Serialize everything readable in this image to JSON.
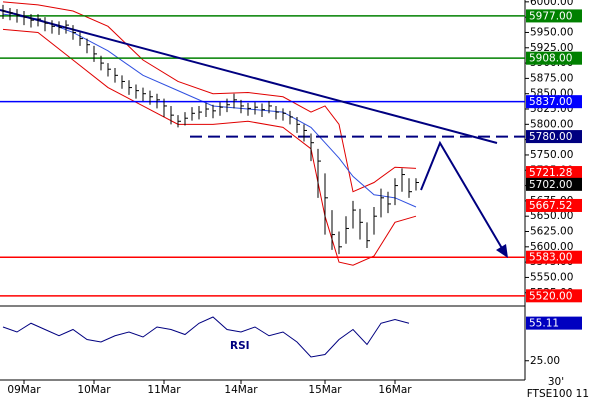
{
  "chart_data": {
    "type": "ohlc",
    "symbol": "FTSE100 11",
    "interval": "30'",
    "ylim": [
      5505,
      6003
    ],
    "yticks": [
      {
        "value": 6000,
        "label": "6000.00"
      },
      {
        "value": 5975,
        "label": "5975.00"
      },
      {
        "value": 5950,
        "label": "5950.00"
      },
      {
        "value": 5925,
        "label": "5925.00"
      },
      {
        "value": 5900,
        "label": "5900.00"
      },
      {
        "value": 5875,
        "label": "5875.00"
      },
      {
        "value": 5850,
        "label": "5850.00"
      },
      {
        "value": 5825,
        "label": "5825.00"
      },
      {
        "value": 5800,
        "label": "5800.00"
      },
      {
        "value": 5775,
        "label": "5775.00"
      },
      {
        "value": 5750,
        "label": "5750.00"
      },
      {
        "value": 5725,
        "label": "5725.00"
      },
      {
        "value": 5700,
        "label": "5700.00"
      },
      {
        "value": 5675,
        "label": "5675.00"
      },
      {
        "value": 5650,
        "label": "5650.00"
      },
      {
        "value": 5625,
        "label": "5625.00"
      },
      {
        "value": 5600,
        "label": "5600.00"
      },
      {
        "value": 5575,
        "label": "5575.00"
      },
      {
        "value": 5550,
        "label": "5550.00"
      },
      {
        "value": 5525,
        "label": "5525.00"
      }
    ],
    "xlim": [
      0,
      75
    ],
    "xticks": [
      {
        "value": 3,
        "label": "09Mar"
      },
      {
        "value": 13,
        "label": "10Mar"
      },
      {
        "value": 23,
        "label": "11Mar"
      },
      {
        "value": 34,
        "label": "14Mar"
      },
      {
        "value": 46,
        "label": "15Mar"
      },
      {
        "value": 56,
        "label": "16Mar"
      }
    ],
    "bar_color": "#000000",
    "close": [
      5985,
      5982,
      5978,
      5975,
      5970,
      5972,
      5965,
      5960,
      5958,
      5962,
      5950,
      5940,
      5930,
      5915,
      5900,
      5890,
      5880,
      5870,
      5860,
      5855,
      5850,
      5845,
      5840,
      5830,
      5815,
      5805,
      5810,
      5818,
      5820,
      5825,
      5822,
      5828,
      5832,
      5840,
      5830,
      5826,
      5828,
      5824,
      5830,
      5820,
      5818,
      5812,
      5800,
      5790,
      5770,
      5740,
      5680,
      5620,
      5600,
      5630,
      5660,
      5640,
      5610,
      5650,
      5680,
      5670,
      5700,
      5718,
      5690,
      5705
    ],
    "high": [
      5995,
      5990,
      5988,
      5985,
      5980,
      5980,
      5975,
      5970,
      5968,
      5970,
      5962,
      5950,
      5940,
      5928,
      5912,
      5900,
      5892,
      5880,
      5872,
      5865,
      5860,
      5855,
      5850,
      5842,
      5830,
      5815,
      5820,
      5828,
      5830,
      5835,
      5832,
      5836,
      5842,
      5850,
      5840,
      5835,
      5836,
      5834,
      5838,
      5830,
      5826,
      5822,
      5812,
      5800,
      5785,
      5760,
      5720,
      5660,
      5625,
      5650,
      5675,
      5662,
      5640,
      5665,
      5695,
      5690,
      5712,
      5728,
      5712,
      5712
    ],
    "low": [
      5972,
      5970,
      5966,
      5962,
      5958,
      5960,
      5952,
      5948,
      5946,
      5948,
      5938,
      5928,
      5916,
      5902,
      5888,
      5878,
      5868,
      5858,
      5848,
      5842,
      5838,
      5832,
      5826,
      5812,
      5800,
      5795,
      5798,
      5806,
      5808,
      5812,
      5810,
      5814,
      5820,
      5826,
      5818,
      5814,
      5816,
      5812,
      5818,
      5808,
      5806,
      5800,
      5786,
      5772,
      5740,
      5680,
      5620,
      5595,
      5588,
      5605,
      5630,
      5612,
      5598,
      5620,
      5648,
      5655,
      5668,
      5690,
      5680,
      5692
    ],
    "overlays": [
      {
        "name": "upper",
        "color": "#e00000",
        "x": [
          0,
          5,
          10,
          15,
          20,
          25,
          30,
          35,
          40,
          44,
          46,
          48,
          50,
          53,
          56,
          59
        ],
        "values": [
          6000,
          5995,
          5985,
          5960,
          5905,
          5870,
          5850,
          5852,
          5845,
          5820,
          5830,
          5800,
          5690,
          5705,
          5730,
          5728
        ]
      },
      {
        "name": "lower",
        "color": "#e00000",
        "x": [
          0,
          5,
          10,
          15,
          20,
          25,
          30,
          35,
          40,
          44,
          46,
          48,
          50,
          53,
          56,
          59
        ],
        "values": [
          5955,
          5950,
          5905,
          5860,
          5830,
          5800,
          5800,
          5805,
          5795,
          5760,
          5650,
          5575,
          5570,
          5585,
          5640,
          5650
        ]
      },
      {
        "name": "average",
        "color": "#3050e0",
        "x": [
          0,
          5,
          10,
          15,
          20,
          25,
          30,
          35,
          40,
          44,
          46,
          48,
          50,
          53,
          56,
          59
        ],
        "values": [
          5980,
          5972,
          5950,
          5920,
          5880,
          5855,
          5830,
          5825,
          5820,
          5795,
          5770,
          5745,
          5715,
          5685,
          5680,
          5665
        ]
      }
    ],
    "levels": [
      {
        "value": 5977,
        "label": "5977.00",
        "color": "#008000",
        "dashed": false
      },
      {
        "value": 5908,
        "label": "5908.00",
        "color": "#008000",
        "dashed": false
      },
      {
        "value": 5837,
        "label": "5837.00",
        "color": "#0000ff",
        "dashed": false
      },
      {
        "value": 5780,
        "label": "5780.00",
        "color": "#000080",
        "dashed": true
      },
      {
        "value": 5583,
        "label": "5583.00",
        "color": "#ff0000",
        "dashed": false
      },
      {
        "value": 5520,
        "label": "5520.00",
        "color": "#ff0000",
        "dashed": false
      }
    ],
    "markers": [
      {
        "value": 5721.28,
        "label": "5721.28",
        "color": "#ff0000"
      },
      {
        "value": 5702,
        "label": "5702.00",
        "color": "#000000"
      },
      {
        "value": 5667.52,
        "label": "5667.52",
        "color": "#ff0000"
      }
    ],
    "rsi": {
      "title": "RSI",
      "color": "#000080",
      "ylim": [
        16,
        64
      ],
      "yticks": [
        {
          "value": 25,
          "label": "25.00"
        }
      ],
      "x": [
        0,
        2,
        4,
        6,
        8,
        10,
        12,
        14,
        16,
        18,
        20,
        22,
        24,
        26,
        28,
        30,
        32,
        34,
        36,
        38,
        40,
        42,
        44,
        46,
        48,
        50,
        52,
        54,
        56,
        58
      ],
      "values": [
        52,
        48,
        55,
        50,
        45,
        50,
        42,
        40,
        45,
        48,
        44,
        52,
        50,
        46,
        55,
        60,
        50,
        48,
        52,
        45,
        48,
        40,
        28,
        30,
        42,
        50,
        38,
        55,
        58,
        55
      ],
      "marker": {
        "value": 55.11,
        "label": "55.11",
        "color": "#0000c0"
      }
    }
  }
}
